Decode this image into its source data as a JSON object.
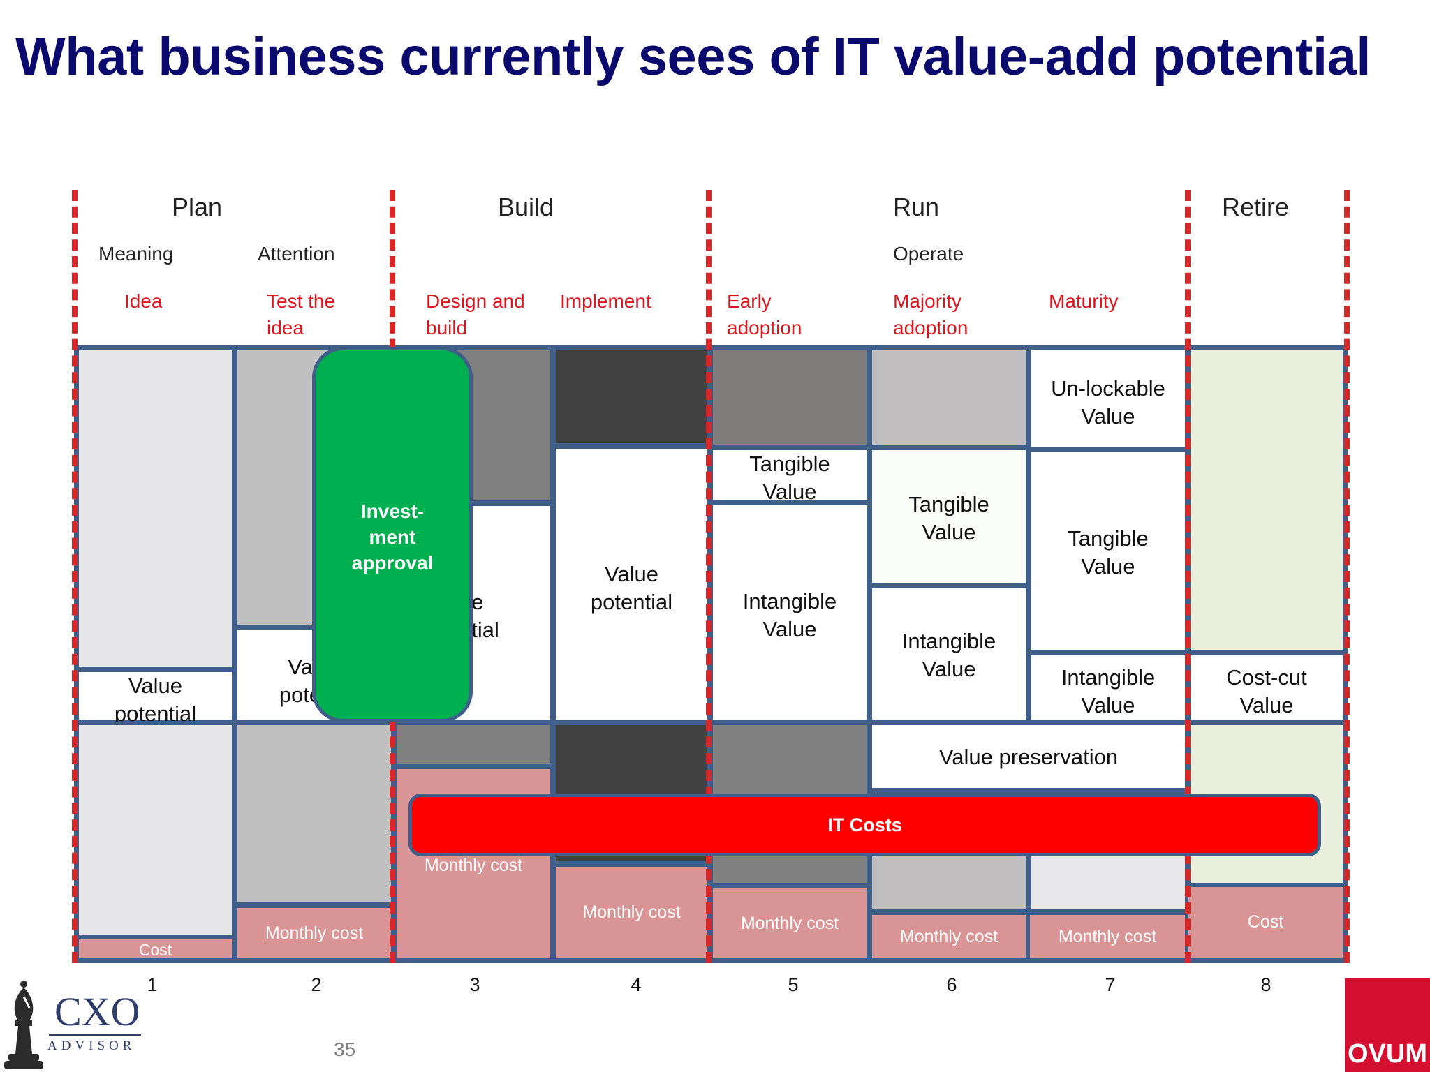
{
  "title": "What business currently sees of IT value-add potential",
  "phases": {
    "plan": "Plan",
    "build": "Build",
    "run": "Run",
    "retire": "Retire"
  },
  "subphases": {
    "meaning": "Meaning",
    "attention": "Attention",
    "operate": "Operate"
  },
  "stages": {
    "idea": "Idea",
    "test_line1": "Test the",
    "test_line2": "idea",
    "design_line1": "Design and",
    "design_line2": "build",
    "implement": "Implement",
    "early_line1": "Early",
    "early_line2": "adoption",
    "majority_line1": "Majority",
    "majority_line2": "adoption",
    "maturity": "Maturity"
  },
  "value_cells": {
    "value_line1": "Value",
    "potential_line2": "potential",
    "col2_partial_line1": "Va",
    "col2_partial_line2": "pote",
    "col3_partial_line1": "ue",
    "col3_partial_line2": "ntial",
    "tangible_line1": "Tangible",
    "intangible_line1": "Intangible",
    "value_word": "Value",
    "unlockable_line1": "Un-lockable",
    "costcut_line1": "Cost-cut",
    "value_preservation": "Value preservation"
  },
  "investment": {
    "line1": "Invest-",
    "line2": "ment",
    "line3": "approval"
  },
  "it_costs": "IT Costs",
  "cost_labels": {
    "cost": "Cost",
    "monthly": "Monthly cost"
  },
  "column_numbers": [
    "1",
    "2",
    "3",
    "4",
    "5",
    "6",
    "7",
    "8"
  ],
  "page_number": "35",
  "logos": {
    "cxo_main": "CXO",
    "cxo_sub": "ADVISOR",
    "ovum": "OVUM"
  },
  "colors": {
    "title": "#0a0a6e",
    "stage_red": "#e0141c",
    "divider_red": "#d92626",
    "border_blue": "#3f5f8a",
    "investment_green": "#00b050",
    "it_costs_red": "#ff0000",
    "cost_pink": "#d99595",
    "ovum_red": "#d50f2f"
  }
}
